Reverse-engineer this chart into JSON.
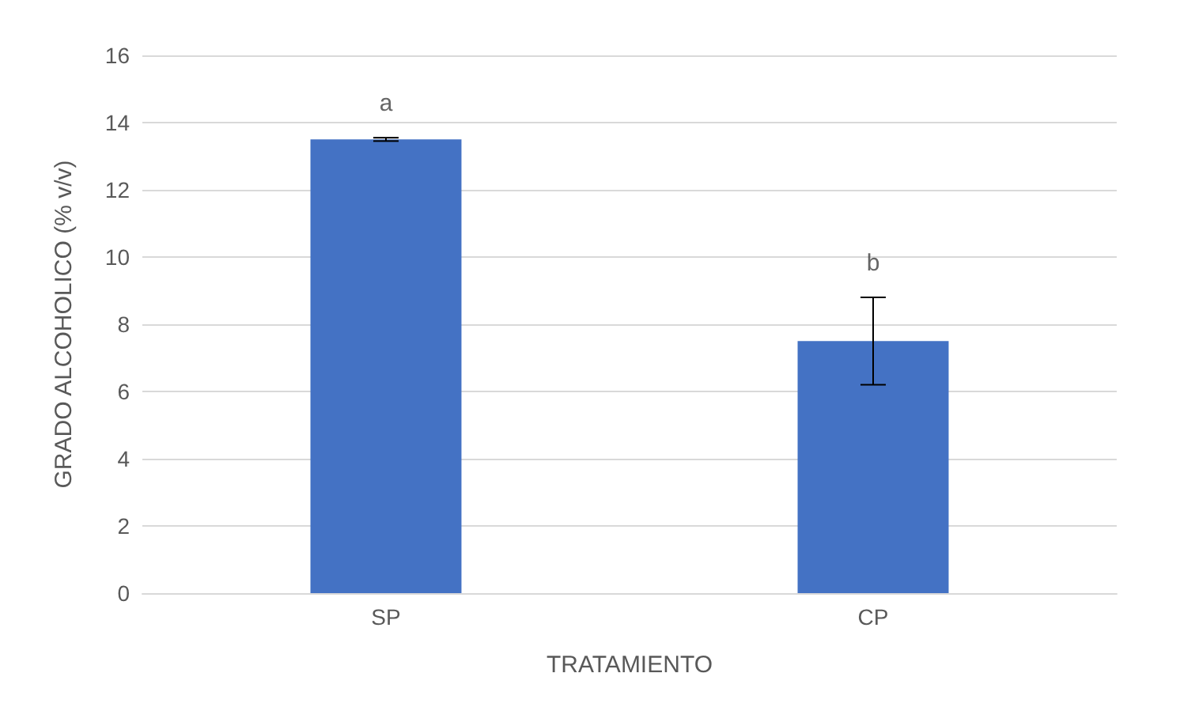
{
  "chart_data": {
    "type": "bar",
    "xlabel": "TRATAMIENTO",
    "ylabel": "GRADO ALCOHOLICO (% v/v)",
    "categories": [
      "SP",
      "CP"
    ],
    "values": [
      13.5,
      7.5
    ],
    "errors": [
      0.05,
      1.3
    ],
    "color": "#4472c4",
    "ylim": [
      0,
      16
    ],
    "yticks": [
      0,
      2,
      4,
      6,
      8,
      10,
      12,
      14,
      16
    ],
    "grid": "y",
    "annotations": [
      "a",
      "b"
    ]
  }
}
